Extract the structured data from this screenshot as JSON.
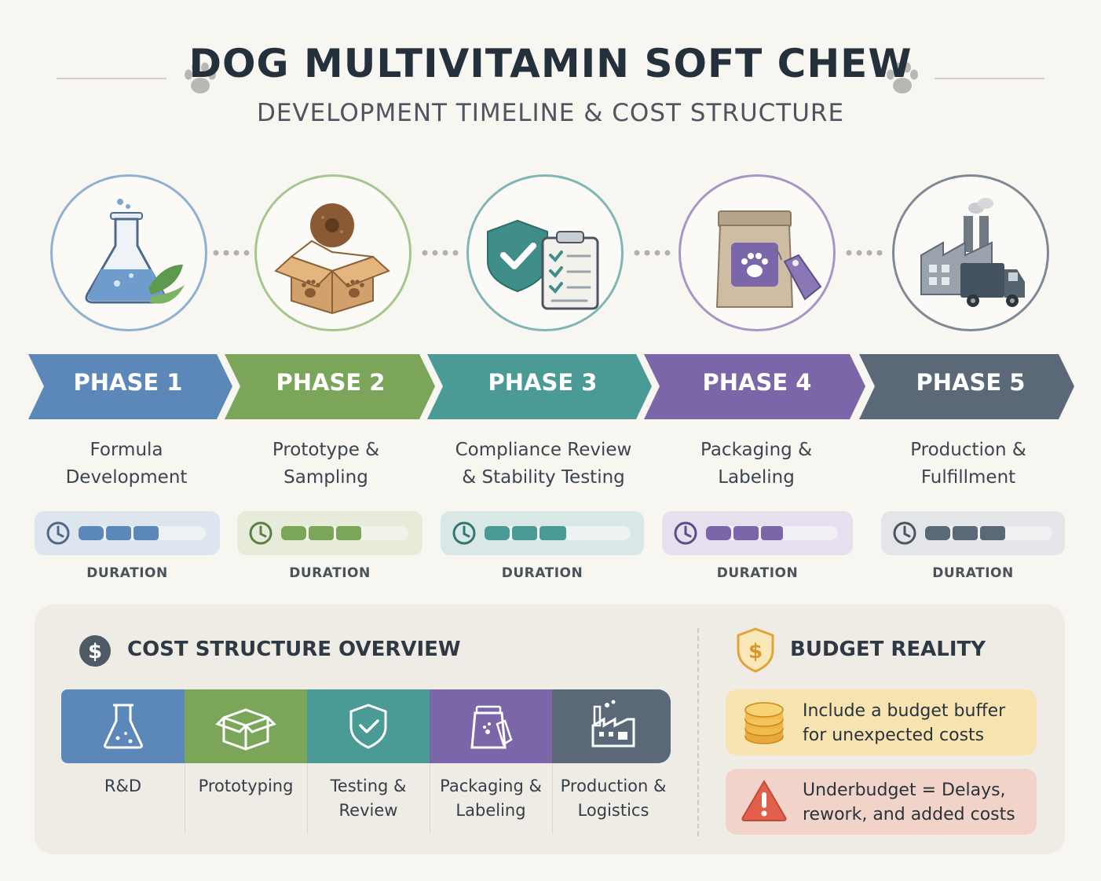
{
  "header": {
    "title": "DOG MULTIVITAMIN SOFT CHEW",
    "subtitle": "DEVELOPMENT TIMELINE & COST STRUCTURE",
    "decor_icon": "paw-icon"
  },
  "phases": [
    {
      "label": "PHASE 1",
      "desc_line1": "Formula",
      "desc_line2": "Development",
      "duration_label": "DURATION",
      "icon": "flask-leaf-icon",
      "color": "#5b88b8"
    },
    {
      "label": "PHASE 2",
      "desc_line1": "Prototype &",
      "desc_line2": "Sampling",
      "duration_label": "DURATION",
      "icon": "box-chew-icon",
      "color": "#7ba65a"
    },
    {
      "label": "PHASE 3",
      "desc_line1": "Compliance Review",
      "desc_line2": "& Stability Testing",
      "duration_label": "DURATION",
      "icon": "shield-clipboard-icon",
      "color": "#4a9a96"
    },
    {
      "label": "PHASE 4",
      "desc_line1": "Packaging &",
      "desc_line2": "Labeling",
      "duration_label": "DURATION",
      "icon": "bag-tag-icon",
      "color": "#7a66a8"
    },
    {
      "label": "PHASE 5",
      "desc_line1": "Production &",
      "desc_line2": "Fulfillment",
      "duration_label": "DURATION",
      "icon": "factory-truck-icon",
      "color": "#5a6878"
    }
  ],
  "cost": {
    "title": "COST STRUCTURE OVERVIEW",
    "icon": "dollar-icon",
    "segments": [
      {
        "line1": "R&D",
        "line2": "",
        "icon": "flask-icon",
        "color": "#5b88b8"
      },
      {
        "line1": "Prototyping",
        "line2": "",
        "icon": "box-icon",
        "color": "#7ba65a"
      },
      {
        "line1": "Testing &",
        "line2": "Review",
        "icon": "shield-check-icon",
        "color": "#4a9a96"
      },
      {
        "line1": "Packaging &",
        "line2": "Labeling",
        "icon": "bag-icon",
        "color": "#7a66a8"
      },
      {
        "line1": "Production &",
        "line2": "Logistics",
        "icon": "factory-icon",
        "color": "#5a6878"
      }
    ]
  },
  "budget": {
    "title": "BUDGET REALITY",
    "icon": "shield-dollar-icon",
    "cards": [
      {
        "line1": "Include a budget buffer",
        "line2": "for unexpected costs",
        "icon": "coins-icon",
        "color": "#f7e4b0"
      },
      {
        "line1": "Underbudget = Delays,",
        "line2": "rework, and added costs",
        "icon": "warning-icon",
        "color": "#f2d3c9"
      }
    ]
  }
}
